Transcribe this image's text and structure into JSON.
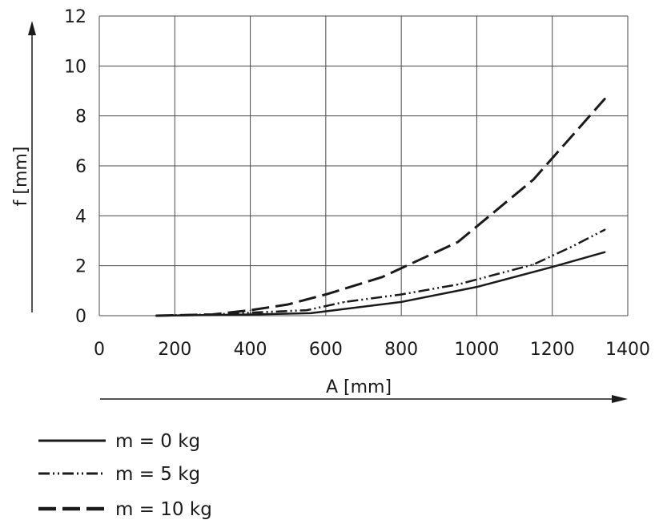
{
  "chart_data": {
    "type": "line",
    "title": "",
    "xlabel": "A [mm]",
    "ylabel": "f [mm]",
    "xlim": [
      0,
      1400
    ],
    "ylim": [
      0,
      12
    ],
    "x_ticks": [
      0,
      200,
      400,
      600,
      800,
      1000,
      1200,
      1400
    ],
    "y_ticks": [
      0,
      2,
      4,
      6,
      8,
      10,
      12
    ],
    "grid": true,
    "legend_position": "bottom-left",
    "series": [
      {
        "name": "m = 0 kg",
        "style": "solid",
        "color": "#1a1a1a",
        "x": [
          150,
          300,
          400,
          560,
          800,
          1000,
          1200,
          1340
        ],
        "y": [
          0,
          0.03,
          0.05,
          0.1,
          0.55,
          1.15,
          1.95,
          2.55
        ]
      },
      {
        "name": "m = 5 kg",
        "style": "dash-dot-dot",
        "color": "#1a1a1a",
        "x": [
          150,
          300,
          400,
          550,
          650,
          800,
          950,
          1150,
          1250,
          1340
        ],
        "y": [
          0,
          0.05,
          0.12,
          0.22,
          0.55,
          0.85,
          1.25,
          2.05,
          2.75,
          3.45
        ]
      },
      {
        "name": "m = 10 kg",
        "style": "dashed",
        "color": "#1a1a1a",
        "x": [
          150,
          300,
          400,
          500,
          600,
          750,
          950,
          1150,
          1340
        ],
        "y": [
          0,
          0.05,
          0.22,
          0.45,
          0.85,
          1.55,
          2.95,
          5.45,
          8.7
        ]
      }
    ]
  }
}
